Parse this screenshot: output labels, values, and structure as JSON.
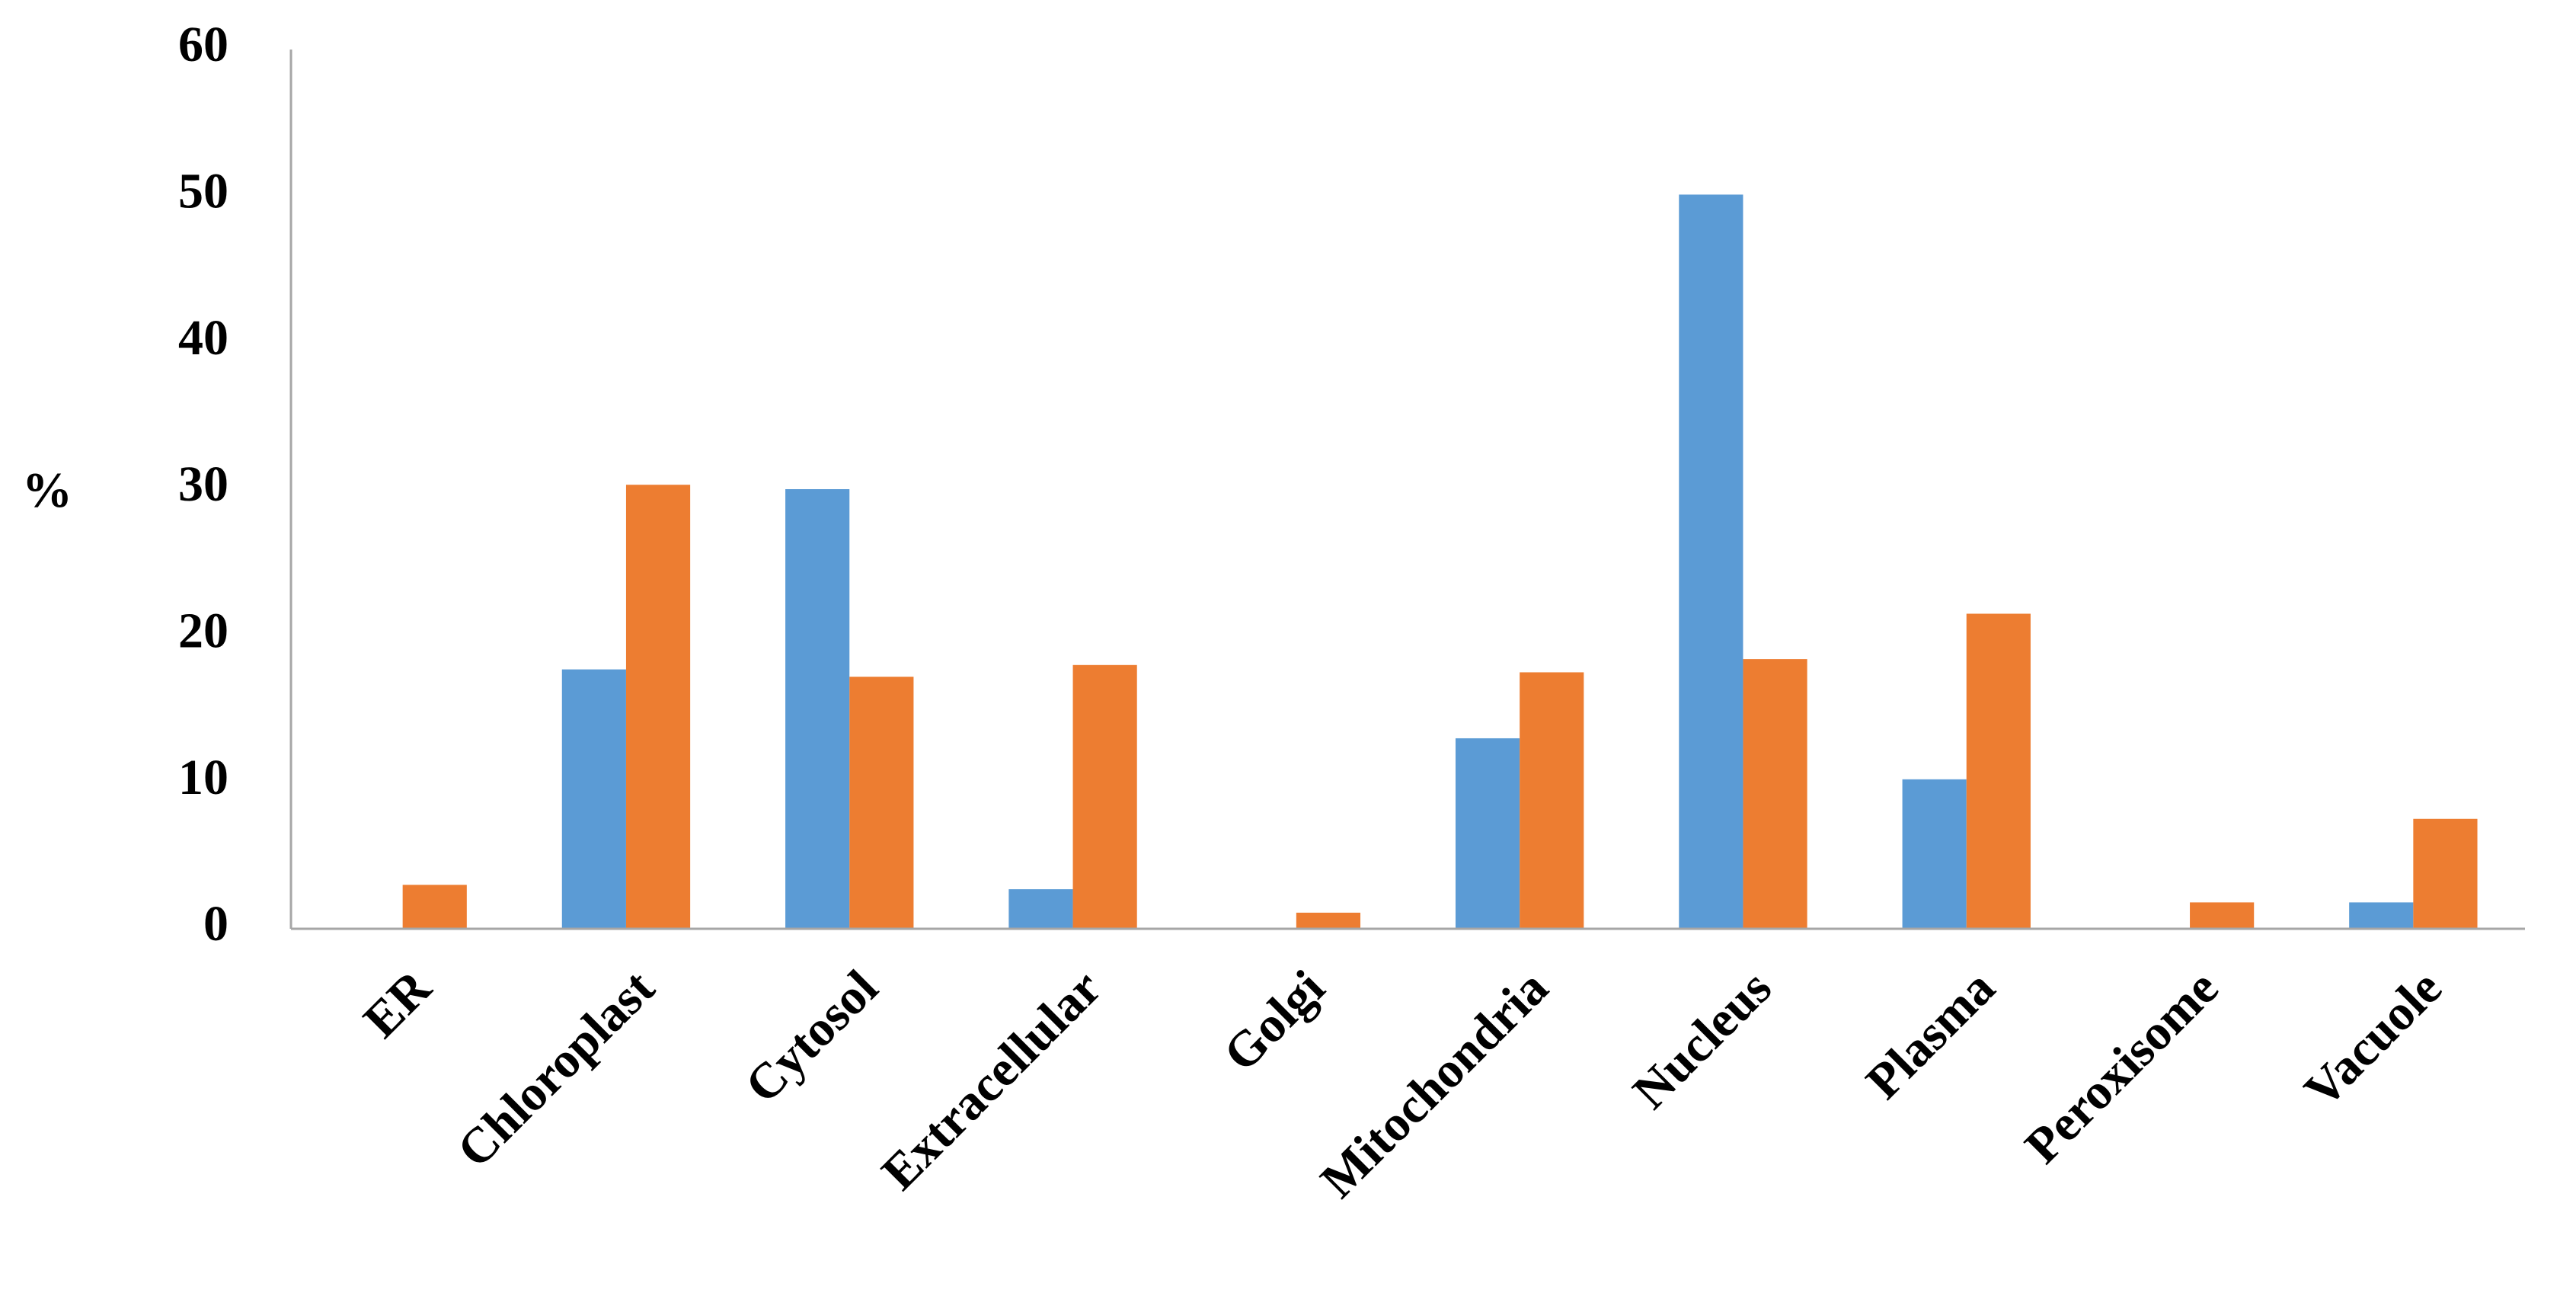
{
  "chart_data": {
    "type": "bar",
    "y_label": "%",
    "categories": [
      "ER",
      "Chloroplast",
      "Cytosol",
      "Extracellular",
      "Golgi",
      "Mitochondria",
      "Nucleus",
      "Plasma",
      "Peroxisome",
      "Vacuole"
    ],
    "series": [
      {
        "color": "#5b9bd5",
        "values": [
          0,
          17.7,
          30.0,
          2.7,
          0,
          13.0,
          50.1,
          10.2,
          0,
          1.8
        ]
      },
      {
        "color": "#ed7d31",
        "values": [
          3.0,
          30.3,
          17.2,
          18.0,
          1.1,
          17.5,
          18.4,
          21.5,
          1.8,
          7.5
        ]
      }
    ],
    "ylim": [
      0,
      60
    ],
    "yticks": [
      0,
      10,
      20,
      30,
      40,
      50,
      60
    ],
    "grid": false
  }
}
